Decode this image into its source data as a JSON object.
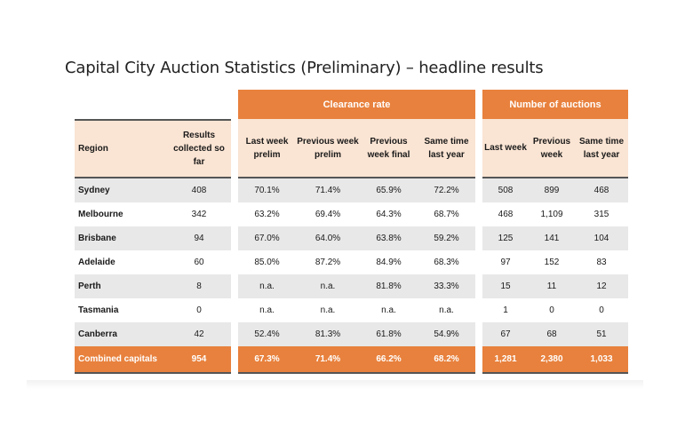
{
  "title": "Capital City Auction Statistics (Preliminary) – headline results",
  "groups": {
    "clearance_rate": "Clearance rate",
    "number_of_auctions": "Number of auctions"
  },
  "headers": {
    "region": "Region",
    "results": "Results collected so far",
    "cr_last_week": "Last week prelim",
    "cr_prev_week": "Previous week prelim",
    "cr_prev_final": "Previous week final",
    "cr_same_time": "Same time last year",
    "na_last_week": "Last week",
    "na_prev_week": "Previous week",
    "na_same_time": "Same time last year"
  },
  "rows": [
    {
      "region": "Sydney",
      "results": "408",
      "cr1": "70.1%",
      "cr2": "71.4%",
      "cr3": "65.9%",
      "cr4": "72.2%",
      "na1": "508",
      "na2": "899",
      "na3": "468"
    },
    {
      "region": "Melbourne",
      "results": "342",
      "cr1": "63.2%",
      "cr2": "69.4%",
      "cr3": "64.3%",
      "cr4": "68.7%",
      "na1": "468",
      "na2": "1,109",
      "na3": "315"
    },
    {
      "region": "Brisbane",
      "results": "94",
      "cr1": "67.0%",
      "cr2": "64.0%",
      "cr3": "63.8%",
      "cr4": "59.2%",
      "na1": "125",
      "na2": "141",
      "na3": "104"
    },
    {
      "region": "Adelaide",
      "results": "60",
      "cr1": "85.0%",
      "cr2": "87.2%",
      "cr3": "84.9%",
      "cr4": "68.3%",
      "na1": "97",
      "na2": "152",
      "na3": "83"
    },
    {
      "region": "Perth",
      "results": "8",
      "cr1": "n.a.",
      "cr2": "n.a.",
      "cr3": "81.8%",
      "cr4": "33.3%",
      "na1": "15",
      "na2": "11",
      "na3": "12"
    },
    {
      "region": "Tasmania",
      "results": "0",
      "cr1": "n.a.",
      "cr2": "n.a.",
      "cr3": "n.a.",
      "cr4": "n.a.",
      "na1": "1",
      "na2": "0",
      "na3": "0"
    },
    {
      "region": "Canberra",
      "results": "42",
      "cr1": "52.4%",
      "cr2": "81.3%",
      "cr3": "61.8%",
      "cr4": "54.9%",
      "na1": "67",
      "na2": "68",
      "na3": "51"
    }
  ],
  "total": {
    "region": "Combined capitals",
    "results": "954",
    "cr1": "67.3%",
    "cr2": "71.4%",
    "cr3": "66.2%",
    "cr4": "68.2%",
    "na1": "1,281",
    "na2": "2,380",
    "na3": "1,033"
  },
  "colors": {
    "accent": "#e8813d",
    "header_bg": "#fae4d3",
    "row_alt": "#e8e8e8"
  }
}
